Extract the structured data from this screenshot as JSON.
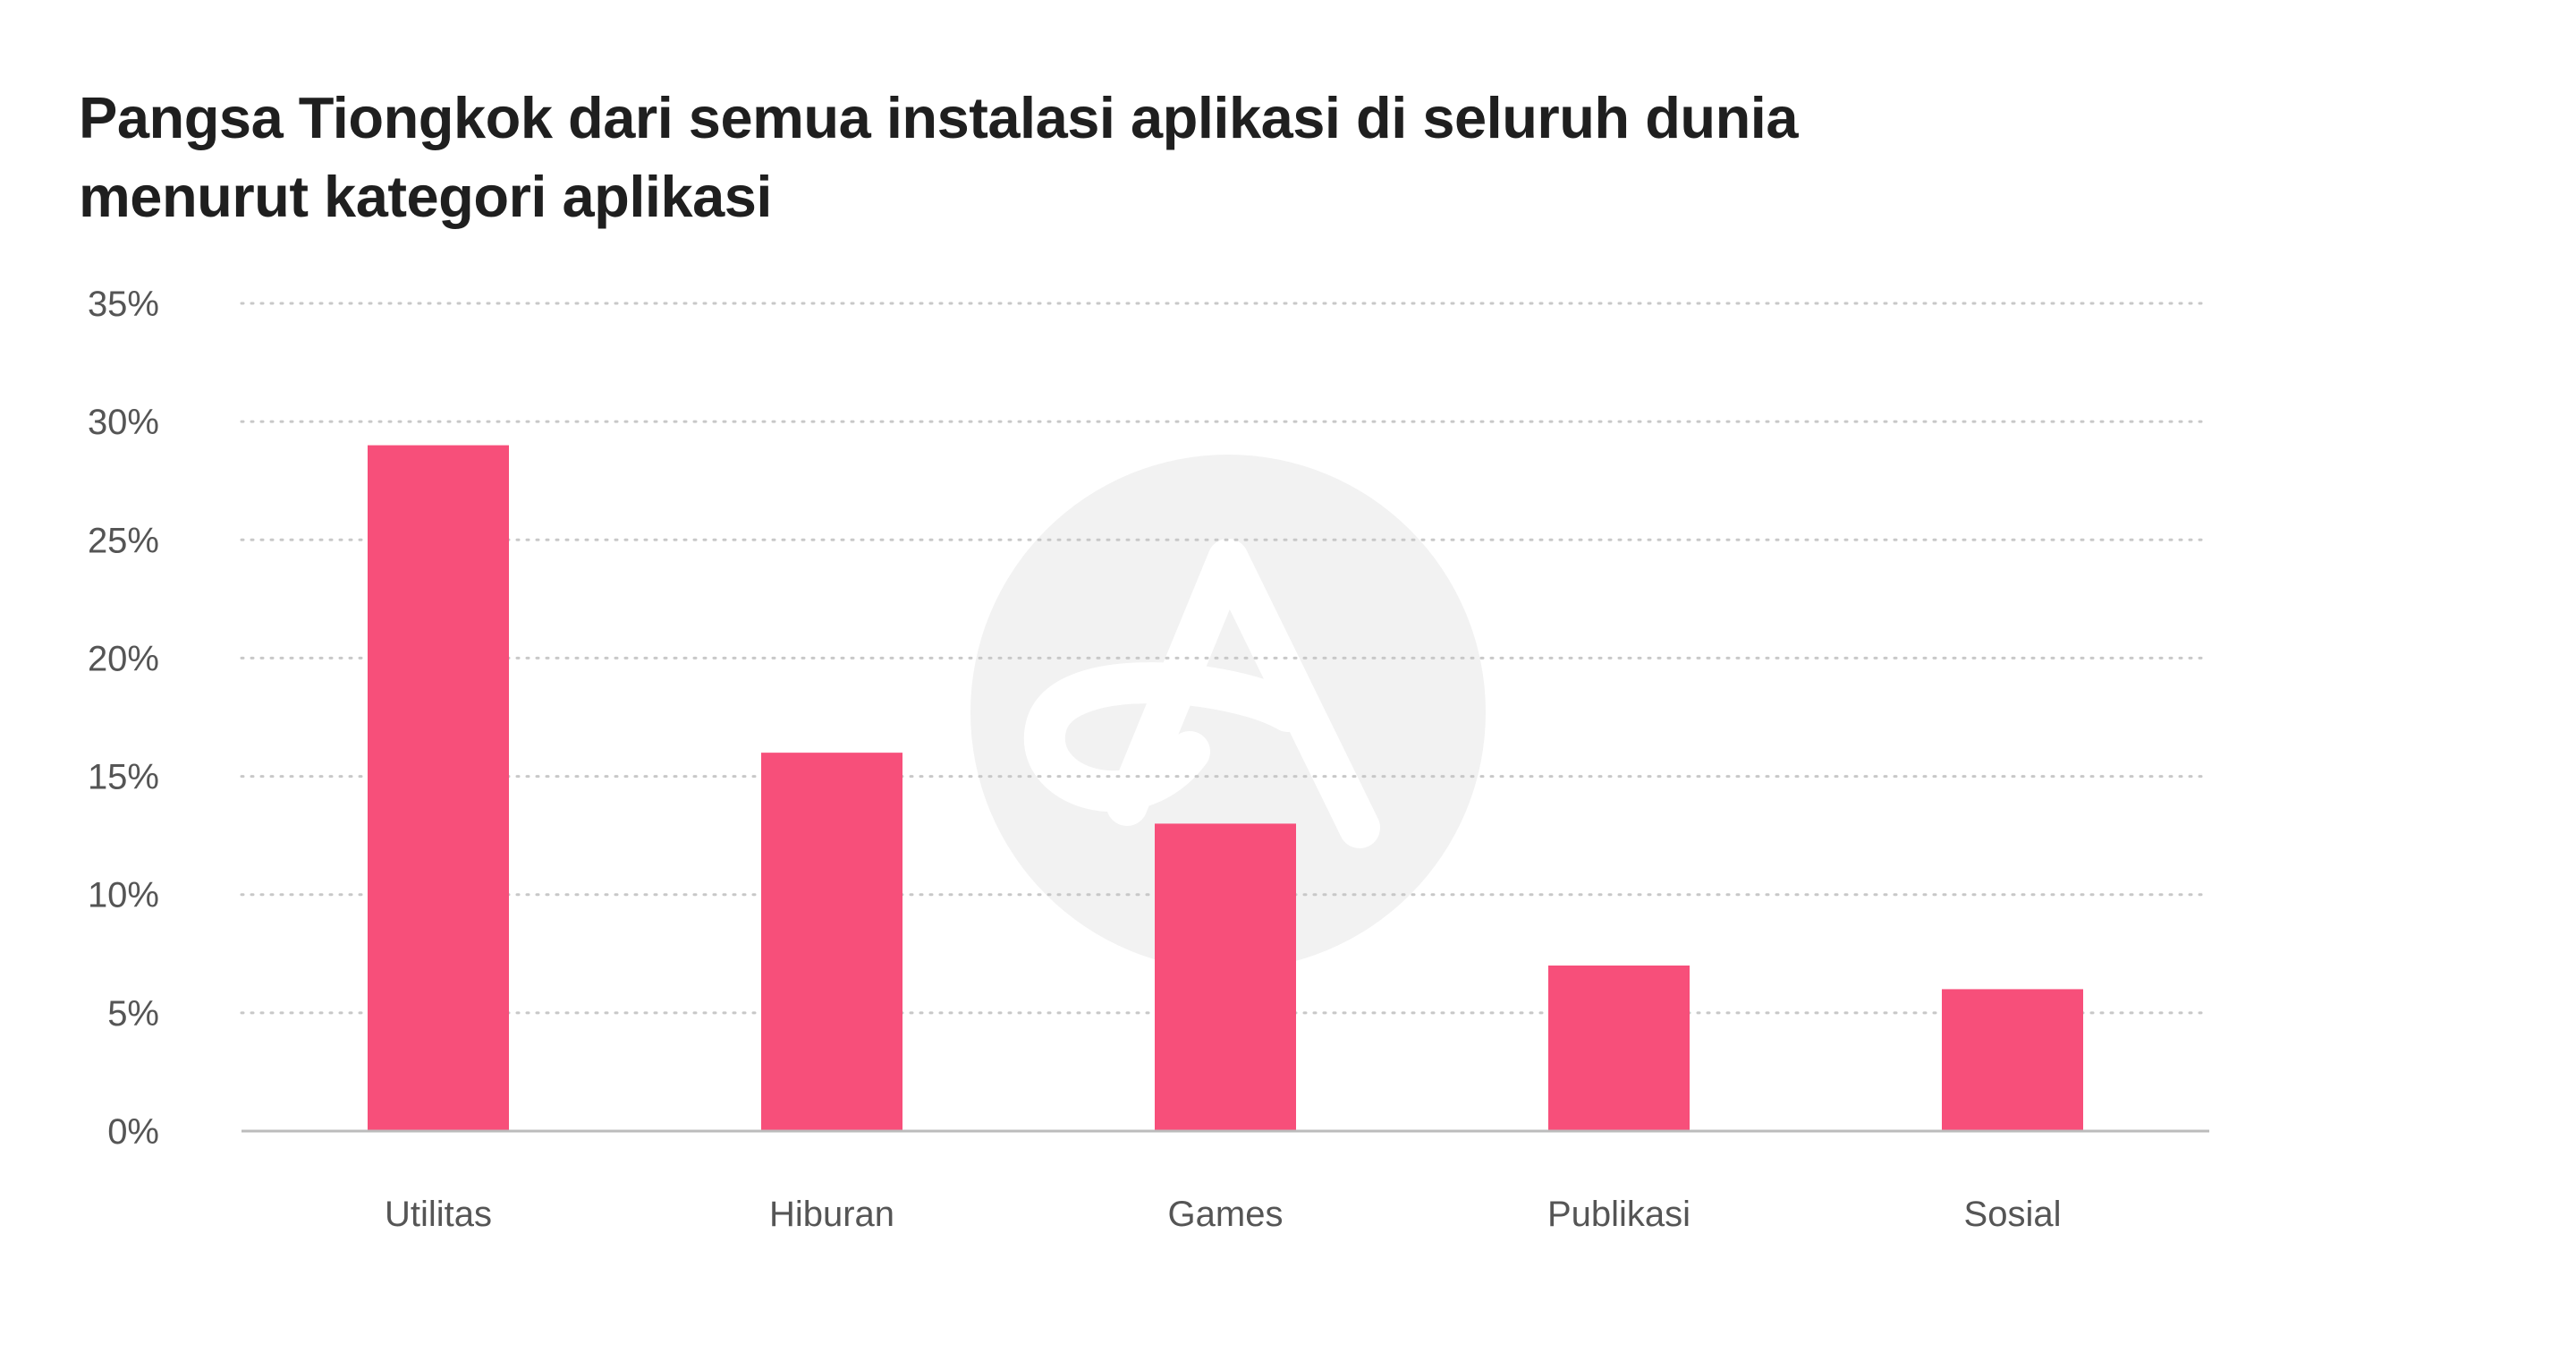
{
  "title_lines": [
    "Pangsa Tiongkok dari semua instalasi aplikasi di seluruh dunia",
    "menurut kategori aplikasi"
  ],
  "colors": {
    "bar": "#F74F7A",
    "grid": "#c8c8c8",
    "axis": "#bcbcbc",
    "watermark": "#f2f2f2"
  },
  "watermark": {
    "icon": "adjust-logo-icon"
  },
  "chart_data": {
    "type": "bar",
    "title": "Pangsa Tiongkok dari semua instalasi aplikasi di seluruh dunia menurut kategori aplikasi",
    "categories": [
      "Utilitas",
      "Hiburan",
      "Games",
      "Publikasi",
      "Sosial"
    ],
    "values": [
      29,
      16,
      13,
      7,
      6
    ],
    "unit": "%",
    "ylim": [
      0,
      35
    ],
    "yticks": [
      0,
      5,
      10,
      15,
      20,
      25,
      30,
      35
    ],
    "ytick_labels": [
      "0%",
      "5%",
      "10%",
      "15%",
      "20%",
      "25%",
      "30%",
      "35%"
    ],
    "xlabel": "",
    "ylabel": "",
    "grid": true,
    "legend": "none"
  }
}
